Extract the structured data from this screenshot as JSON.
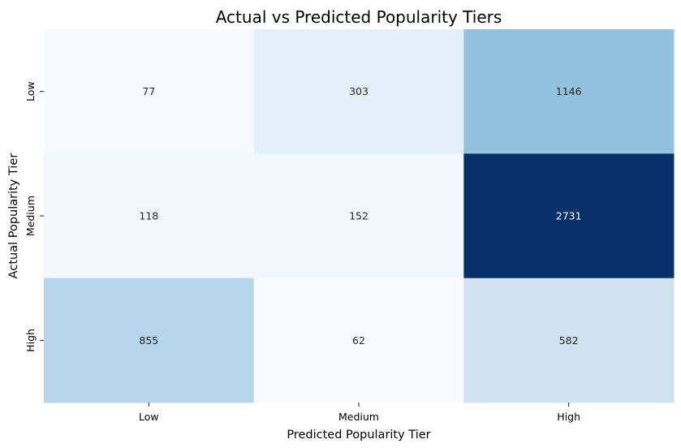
{
  "chart_data": {
    "type": "heatmap",
    "title": "Actual vs Predicted Popularity Tiers",
    "xlabel": "Predicted Popularity Tier",
    "ylabel": "Actual Popularity Tier",
    "x_categories": [
      "Low",
      "Medium",
      "High"
    ],
    "y_categories": [
      "Low",
      "Medium",
      "High"
    ],
    "values": [
      [
        77,
        303,
        1146
      ],
      [
        118,
        152,
        2731
      ],
      [
        855,
        62,
        582
      ]
    ],
    "colormap": "Blues",
    "colorbar": false,
    "annotations": true,
    "colors": {
      "low": "#f7fbff",
      "high": "#08306b",
      "text_dark": "#262626",
      "text_light": "#ffffff"
    }
  }
}
